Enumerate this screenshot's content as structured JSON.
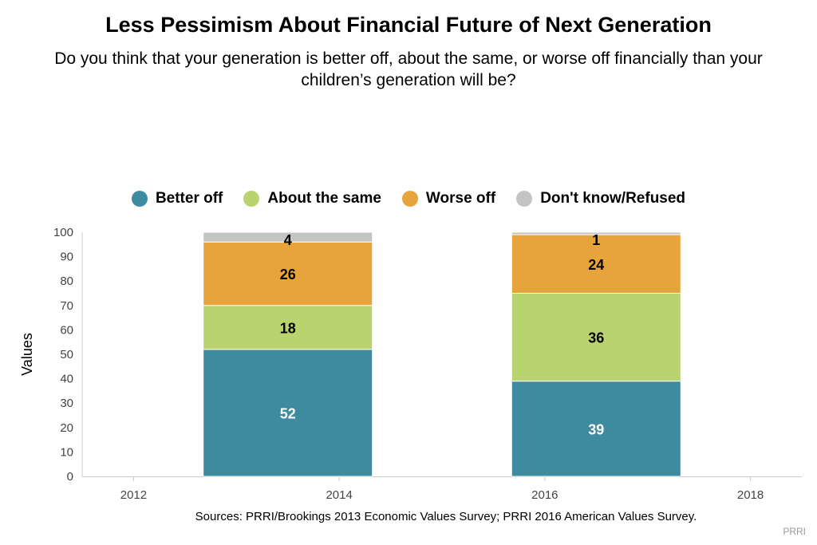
{
  "title": "Less Pessimism About Financial Future of Next Generation",
  "subtitle": "Do you think that your generation is better off, about the same, or worse off financially than your children’s generation will be?",
  "source": "Sources: PRRI/Brookings 2013 Economic Values Survey; PRRI 2016 American Values Survey.",
  "credit": "PRRI",
  "chart_data": {
    "type": "bar",
    "stacked": true,
    "x": [
      2013.5,
      2016.5
    ],
    "xlim": [
      2011.5,
      2018.5
    ],
    "xticks": [
      2012,
      2014,
      2016,
      2018
    ],
    "ylabel": "Values",
    "ylim": [
      0,
      100
    ],
    "yticks": [
      0,
      10,
      20,
      30,
      40,
      50,
      60,
      70,
      80,
      90,
      100
    ],
    "grid": false,
    "legend_position": "top",
    "series": [
      {
        "name": "Better off",
        "color": "#3e8a9e",
        "values": [
          52,
          39
        ],
        "label_color": "#ffffff"
      },
      {
        "name": "About the same",
        "color": "#b9d46e",
        "values": [
          18,
          36
        ],
        "label_color": "#000000"
      },
      {
        "name": "Worse off",
        "color": "#e8a43c",
        "values": [
          26,
          24
        ],
        "label_color": "#000000"
      },
      {
        "name": "Don't know/Refused",
        "color": "#c4c4c4",
        "values": [
          4,
          1
        ],
        "label_color": "#000000"
      }
    ]
  }
}
